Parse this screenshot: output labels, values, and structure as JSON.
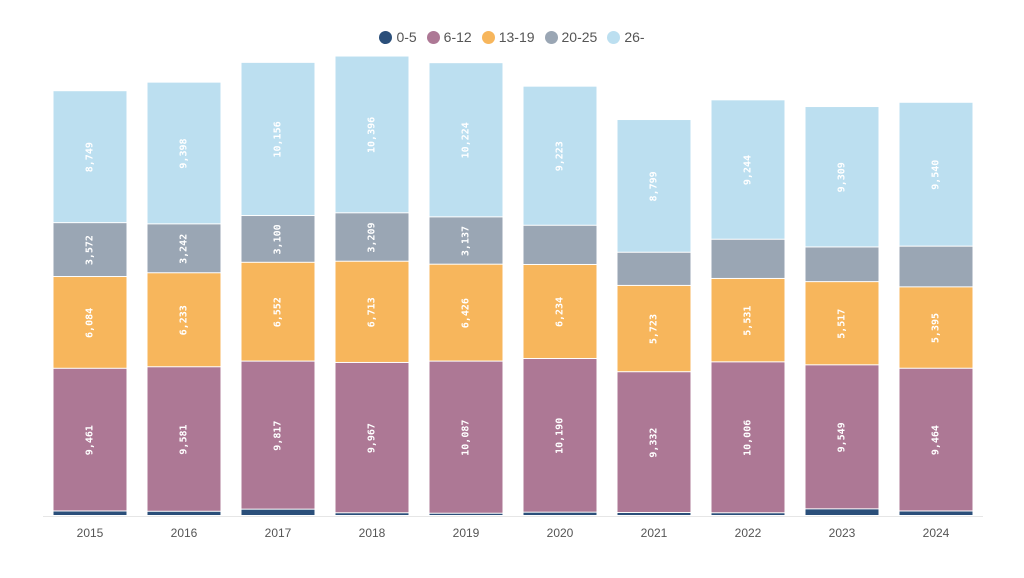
{
  "chart_data": {
    "type": "bar",
    "stacked": true,
    "orientation": "vertical",
    "categories": [
      "2015",
      "2016",
      "2017",
      "2018",
      "2019",
      "2020",
      "2021",
      "2022",
      "2023",
      "2024"
    ],
    "series": [
      {
        "name": "0-5",
        "color": "#2b4f7a",
        "values": [
          300,
          280,
          420,
          180,
          150,
          220,
          200,
          180,
          440,
          300
        ],
        "labels": [
          "",
          "",
          "",
          "",
          "",
          "",
          "",
          "",
          "",
          ""
        ]
      },
      {
        "name": "6-12",
        "color": "#ad7895",
        "values": [
          9461,
          9581,
          9817,
          9967,
          10087,
          10190,
          9332,
          10006,
          9549,
          9464
        ],
        "labels": [
          "9,461",
          "9,581",
          "9,817",
          "9,967",
          "10,087",
          "10,190",
          "9,332",
          "10,006",
          "9,549",
          "9,464"
        ]
      },
      {
        "name": "13-19",
        "color": "#f7b65c",
        "values": [
          6084,
          6233,
          6552,
          6713,
          6426,
          6234,
          5723,
          5531,
          5517,
          5395
        ],
        "labels": [
          "6,084",
          "6,233",
          "6,552",
          "6,713",
          "6,426",
          "6,234",
          "5,723",
          "5,531",
          "5,517",
          "5,395"
        ]
      },
      {
        "name": "20-25",
        "color": "#9aa6b4",
        "values": [
          3572,
          3242,
          3100,
          3209,
          3137,
          2600,
          2200,
          2600,
          2300,
          2700
        ],
        "labels": [
          "3,572",
          "3,242",
          "3,100",
          "3,209",
          "3,137",
          "",
          "",
          "",
          "",
          ""
        ]
      },
      {
        "name": "26-",
        "color": "#bcdff0",
        "values": [
          8749,
          9398,
          10156,
          10396,
          10224,
          9223,
          8799,
          9244,
          9309,
          9540
        ],
        "labels": [
          "8,749",
          "9,398",
          "10,156",
          "10,396",
          "10,224",
          "9,223",
          "8,799",
          "9,244",
          "9,309",
          "9,540"
        ]
      }
    ],
    "ylim": [
      0,
      30500
    ],
    "legend": "top-center",
    "grid": false,
    "xlabel": "",
    "ylabel": ""
  }
}
